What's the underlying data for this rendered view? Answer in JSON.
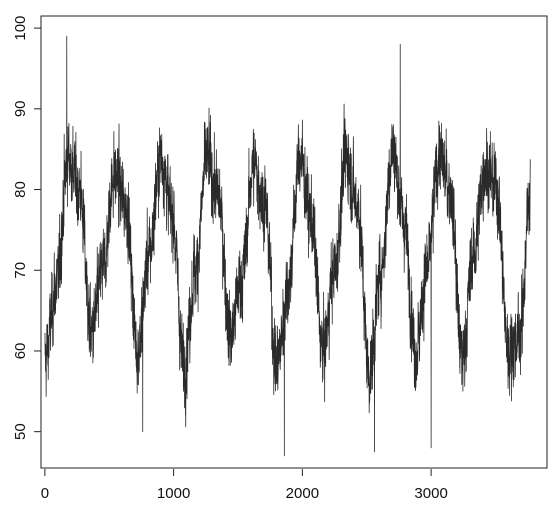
{
  "chart_data": {
    "type": "line",
    "title": "",
    "xlabel": "",
    "ylabel": "",
    "xlim": [
      -30,
      3900
    ],
    "ylim": [
      45.5,
      101.5
    ],
    "x_ticks": [
      0,
      1000,
      2000,
      3000
    ],
    "y_ticks": [
      50,
      60,
      70,
      80,
      90,
      100
    ],
    "x_tick_labels": [
      "0",
      "1000",
      "2000",
      "3000"
    ],
    "y_tick_labels": [
      "50",
      "60",
      "70",
      "80",
      "90",
      "100"
    ],
    "grid": false,
    "legend": "none",
    "line_color": "#2a2a2a",
    "series": [
      {
        "x_start": 0,
        "x_end": 3770,
        "approx_period": 365,
        "envelope_x": [
          0,
          90,
          180,
          270,
          360,
          450,
          540,
          630,
          720,
          810,
          900,
          990,
          1080,
          1170,
          1260,
          1350,
          1440,
          1530,
          1620,
          1710,
          1800,
          1890,
          1980,
          2070,
          2160,
          2250,
          2340,
          2430,
          2520,
          2610,
          2700,
          2790,
          2880,
          2970,
          3060,
          3150,
          3240,
          3330,
          3420,
          3510,
          3600,
          3690,
          3770
        ],
        "envelope_mean": [
          59,
          68,
          84,
          80,
          62,
          70,
          82,
          78,
          60,
          72,
          84,
          77,
          58,
          70,
          84,
          79,
          62,
          69,
          83,
          78,
          58,
          68,
          84,
          76,
          60,
          70,
          84,
          78,
          57,
          70,
          85,
          76,
          60,
          70,
          84,
          80,
          59,
          72,
          83,
          80,
          60,
          62,
          80
        ],
        "extremes": [
          {
            "x": 170,
            "y": 99
          },
          {
            "x": 2760,
            "y": 98
          },
          {
            "x": 1860,
            "y": 47
          },
          {
            "x": 2560,
            "y": 47.5
          },
          {
            "x": 3000,
            "y": 48
          },
          {
            "x": 760,
            "y": 50
          }
        ]
      }
    ]
  }
}
